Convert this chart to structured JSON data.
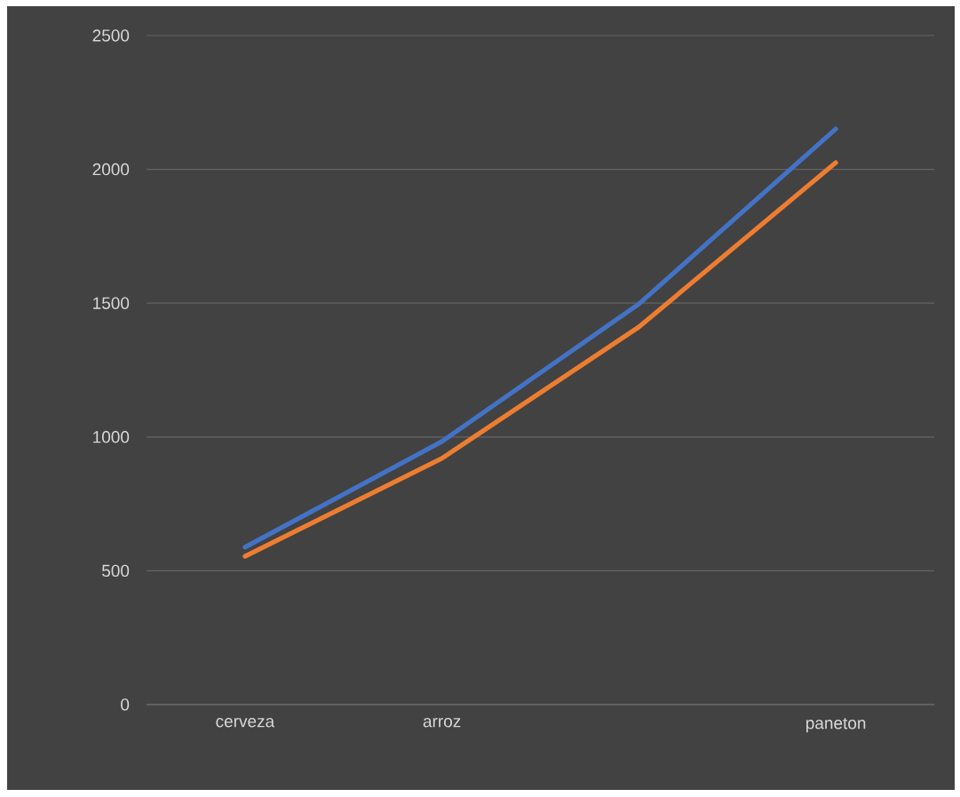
{
  "chart_data": {
    "type": "line",
    "categories": [
      "cerveza",
      "arroz",
      null,
      "paneton"
    ],
    "series": [
      {
        "color": "#4472c4",
        "values": [
          588,
          983,
          1497,
          2151
        ]
      },
      {
        "color": "#ed7d31",
        "values": [
          554,
          920,
          1411,
          2025
        ]
      }
    ],
    "ylim": [
      0,
      2500
    ],
    "yticks": [
      0,
      500,
      1000,
      1500,
      2000,
      2500
    ],
    "grid": "y",
    "marker": "none",
    "line_style": "solid"
  }
}
